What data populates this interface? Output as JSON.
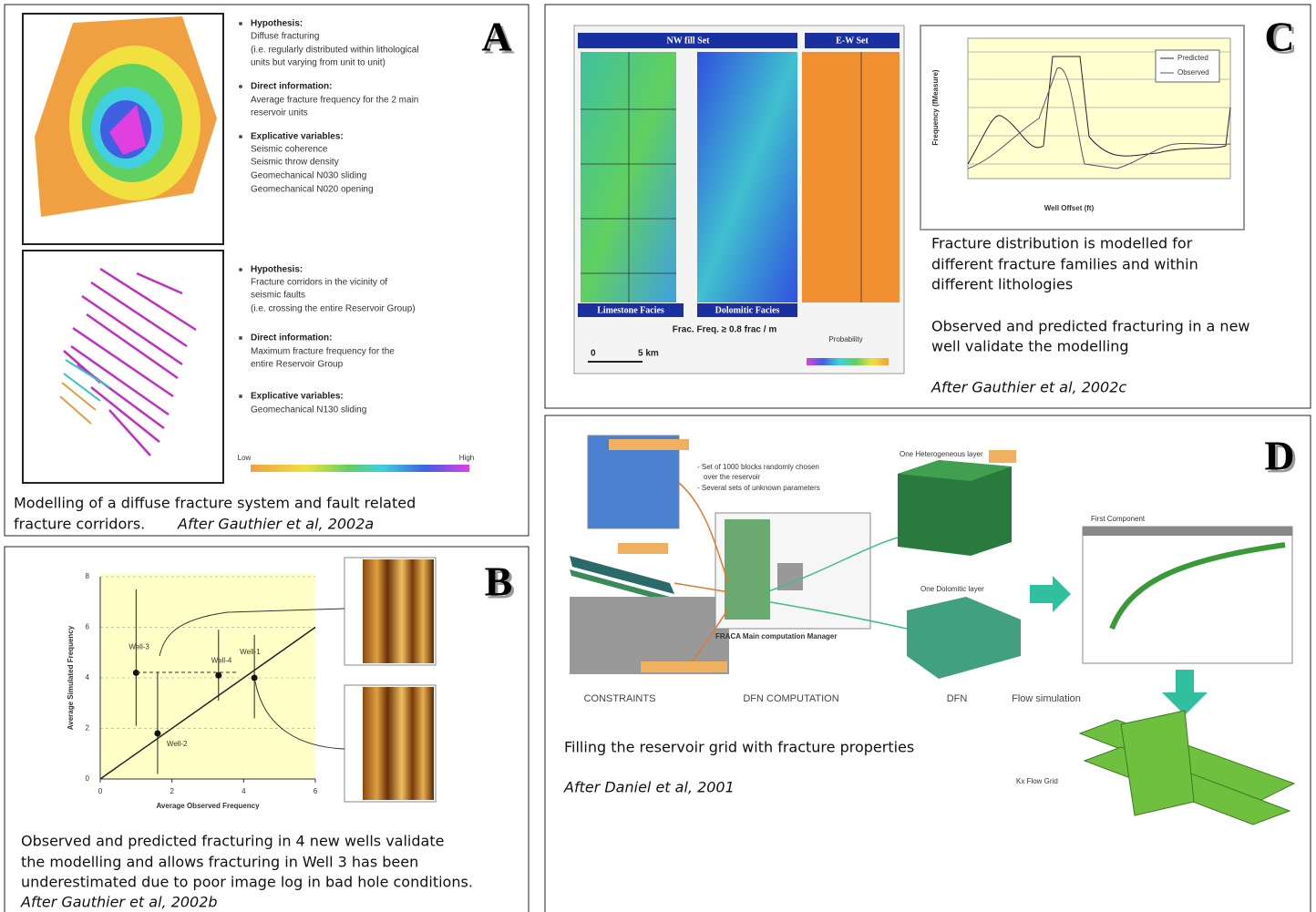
{
  "panel_a": {
    "letter": "A",
    "block1": [
      "Hypothesis:",
      "Diffuse fracturing",
      "(i.e. regularly distributed within lithological",
      "units but varying from unit to unit)",
      "Direct information:",
      "Average fracture frequency for the 2 main",
      "reservoir units",
      "Explicative variables:",
      "Seismic coherence",
      "Seismic throw density",
      "Geomechanical N030 sliding",
      "Geomechanical N020 opening"
    ],
    "block2": [
      "Hypothesis:",
      "Fracture corridors in the vicinity of",
      "seismic faults",
      "(i.e. crossing the entire Reservoir Group)",
      "Direct information:",
      "Maximum fracture frequency for the",
      "entire Reservoir Group",
      "Explicative variables:",
      "Geomechanical N130 sliding"
    ],
    "legend_low": "Low",
    "legend_high": "High",
    "caption": [
      "Modelling of a diffuse fracture system and fault related",
      "fracture corridors."
    ],
    "citation": "After Gauthier et al, 2002a"
  },
  "panel_b": {
    "letter": "B",
    "chart": {
      "type": "scatter",
      "xlabel": "Average Observed Frequency",
      "ylabel": "Average Simulated Frequency",
      "xlim": [
        0,
        6
      ],
      "ylim": [
        0,
        8
      ],
      "xticks": [
        0,
        2,
        4,
        6
      ],
      "yticks": [
        0,
        2,
        4,
        6,
        8
      ],
      "points": [
        {
          "name": "Well-1",
          "x": 4.3,
          "y": 4.0,
          "low": 2.4,
          "high": 5.7
        },
        {
          "name": "Well-2",
          "x": 1.6,
          "y": 1.8,
          "low": 0.2,
          "high": 4.2
        },
        {
          "name": "Well-3",
          "x": 1.0,
          "y": 4.2,
          "low": 2.1,
          "high": 7.5
        },
        {
          "name": "Well-4",
          "x": 3.3,
          "y": 4.1,
          "low": 3.1,
          "high": 5.9
        }
      ]
    },
    "caption": [
      "Observed and predicted fracturing in 4 new wells validate",
      "the modelling and allows fracturing in Well 3 has been",
      "underestimated due to poor image log in bad hole conditions."
    ],
    "citation": "After Gauthier et al, 2002b"
  },
  "panel_c": {
    "letter": "C",
    "map_headers": [
      "NW fill Set",
      "E-W Set"
    ],
    "map_footers": [
      "Limestone Facies",
      "Dolomitic Facies"
    ],
    "map_note": "Frac. Freq. ≥ 0.8 frac / m",
    "scale_start": "0",
    "scale_end": "5 km",
    "probability": "Probability",
    "chart_xlabel": "Well Offset (ft)",
    "chart_ylabel": "Frequency (fMeasure)",
    "legend": [
      "Predicted",
      "Observed"
    ],
    "caption": [
      "Fracture distribution is modelled for",
      "different fracture families and within",
      "different lithologies"
    ],
    "caption2": [
      "Observed and predicted fracturing in a new",
      "well validate the modelling"
    ],
    "citation": "After Gauthier et al, 2002c"
  },
  "panel_d": {
    "letter": "D",
    "notes": [
      "- Set of 1000 blocks randomly chosen",
      "over the reservoir",
      "- Several sets of unknown parameters"
    ],
    "manager": "FRACA Main computation Manager",
    "layer1": "One Heterogeneous layer",
    "layer2": "One Dolomitic layer",
    "first_component": "First Component",
    "grid": "Kx Flow Grid",
    "stages": [
      "CONSTRAINTS",
      "DFN COMPUTATION",
      "DFN",
      "Flow simulation"
    ],
    "caption": "Filling the reservoir grid with fracture properties",
    "citation": "After Daniel et al, 2001"
  }
}
